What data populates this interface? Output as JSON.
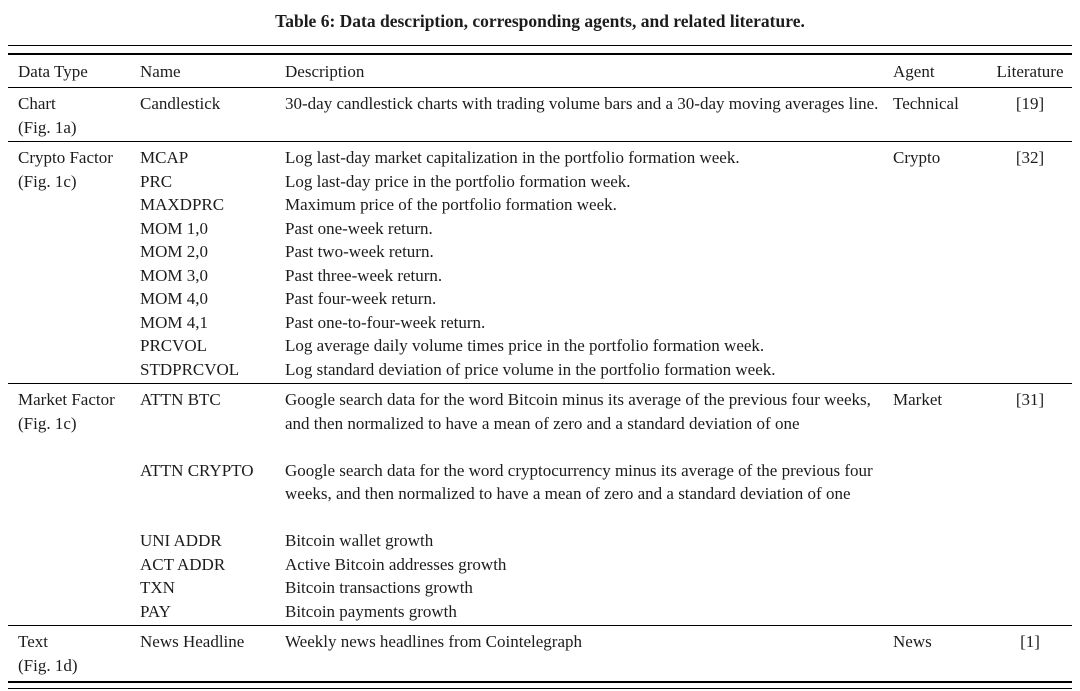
{
  "title": "Table 6: Data description, corresponding agents, and related literature.",
  "header": {
    "data_type": "Data Type",
    "name": "Name",
    "description": "Description",
    "agent": "Agent",
    "literature": "Literature"
  },
  "rows": [
    {
      "data_type": "Chart",
      "figure": "(Fig. 1a)",
      "agent": "Technical",
      "literature": "[19]",
      "entries": [
        {
          "name": "Candlestick",
          "description": "30-day candlestick charts with trading volume bars and a 30-day moving averages line."
        }
      ]
    },
    {
      "data_type": "Crypto Factor",
      "figure": "(Fig. 1c)",
      "agent": "Crypto",
      "literature": "[32]",
      "entries": [
        {
          "name": "MCAP",
          "description": "Log last-day market capitalization in the portfolio formation week."
        },
        {
          "name": "PRC",
          "description": "Log last-day price in the portfolio formation week."
        },
        {
          "name": "MAXDPRC",
          "description": "Maximum price of the portfolio formation week."
        },
        {
          "name": "MOM 1,0",
          "description": "Past one-week return."
        },
        {
          "name": "MOM 2,0",
          "description": "Past two-week return."
        },
        {
          "name": "MOM 3,0",
          "description": "Past three-week return."
        },
        {
          "name": "MOM 4,0",
          "description": "Past four-week return."
        },
        {
          "name": "MOM 4,1",
          "description": "Past one-to-four-week return."
        },
        {
          "name": "PRCVOL",
          "description": "Log average daily volume times price in the portfolio formation week."
        },
        {
          "name": "STDPRCVOL",
          "description": "Log standard deviation of price volume in the portfolio formation week."
        }
      ]
    },
    {
      "data_type": "Market Factor",
      "figure": "(Fig. 1c)",
      "agent": "Market",
      "literature": "[31]",
      "entries": [
        {
          "name": "ATTN BTC",
          "description": "Google search data for the word Bitcoin minus its average of the previous four weeks, and then normalized to have a mean of zero and a standard deviation of one"
        },
        {
          "name": "ATTN CRYPTO",
          "description": "Google search data for the word cryptocurrency minus its average of the previous four weeks, and then normalized to have a mean of zero and a standard deviation of one"
        },
        {
          "name": "UNI ADDR",
          "description": "Bitcoin wallet growth"
        },
        {
          "name": "ACT ADDR",
          "description": "Active Bitcoin addresses growth"
        },
        {
          "name": "TXN",
          "description": "Bitcoin transactions growth"
        },
        {
          "name": "PAY",
          "description": "Bitcoin payments growth"
        }
      ]
    },
    {
      "data_type": "Text",
      "figure": "(Fig. 1d)",
      "agent": "News",
      "literature": "[1]",
      "entries": [
        {
          "name": "News Headline",
          "description": "Weekly news headlines from Cointelegraph"
        }
      ]
    }
  ]
}
